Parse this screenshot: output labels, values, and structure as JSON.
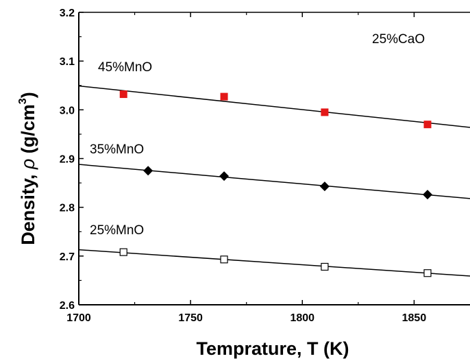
{
  "chart_data": {
    "type": "scatter",
    "title": "",
    "xlabel": "Temprature, T (K)",
    "ylabel_prefix": "Density, ",
    "ylabel_symbol": "ρ",
    "ylabel_unit": " (g/cm",
    "ylabel_exp": "3",
    "ylabel_close": ")",
    "xlim": [
      1700,
      1875
    ],
    "ylim": [
      2.6,
      3.2
    ],
    "xticks": [
      "1700",
      "1750",
      "1800",
      "1850"
    ],
    "yticks": [
      "2.6",
      "2.7",
      "2.8",
      "2.9",
      "3.0",
      "3.1",
      "3.2"
    ],
    "grid": false,
    "annotation": "25%CaO",
    "series": [
      {
        "name": "45%MnO",
        "marker": "filled-square",
        "color": "#e31818",
        "x": [
          1720,
          1765,
          1810,
          1856
        ],
        "y": [
          3.032,
          3.027,
          2.995,
          2.97
        ],
        "fit": [
          [
            1700,
            3.049
          ],
          [
            1875,
            2.964
          ]
        ]
      },
      {
        "name": "35%MnO",
        "marker": "filled-diamond",
        "color": "#000000",
        "x": [
          1731,
          1765,
          1810,
          1856
        ],
        "y": [
          2.875,
          2.864,
          2.843,
          2.826
        ],
        "fit": [
          [
            1700,
            2.888
          ],
          [
            1875,
            2.818
          ]
        ]
      },
      {
        "name": "25%MnO",
        "marker": "open-square",
        "color": "#000000",
        "x": [
          1720,
          1765,
          1810,
          1856
        ],
        "y": [
          2.708,
          2.693,
          2.678,
          2.665
        ],
        "fit": [
          [
            1700,
            2.713
          ],
          [
            1875,
            2.659
          ]
        ]
      }
    ]
  }
}
